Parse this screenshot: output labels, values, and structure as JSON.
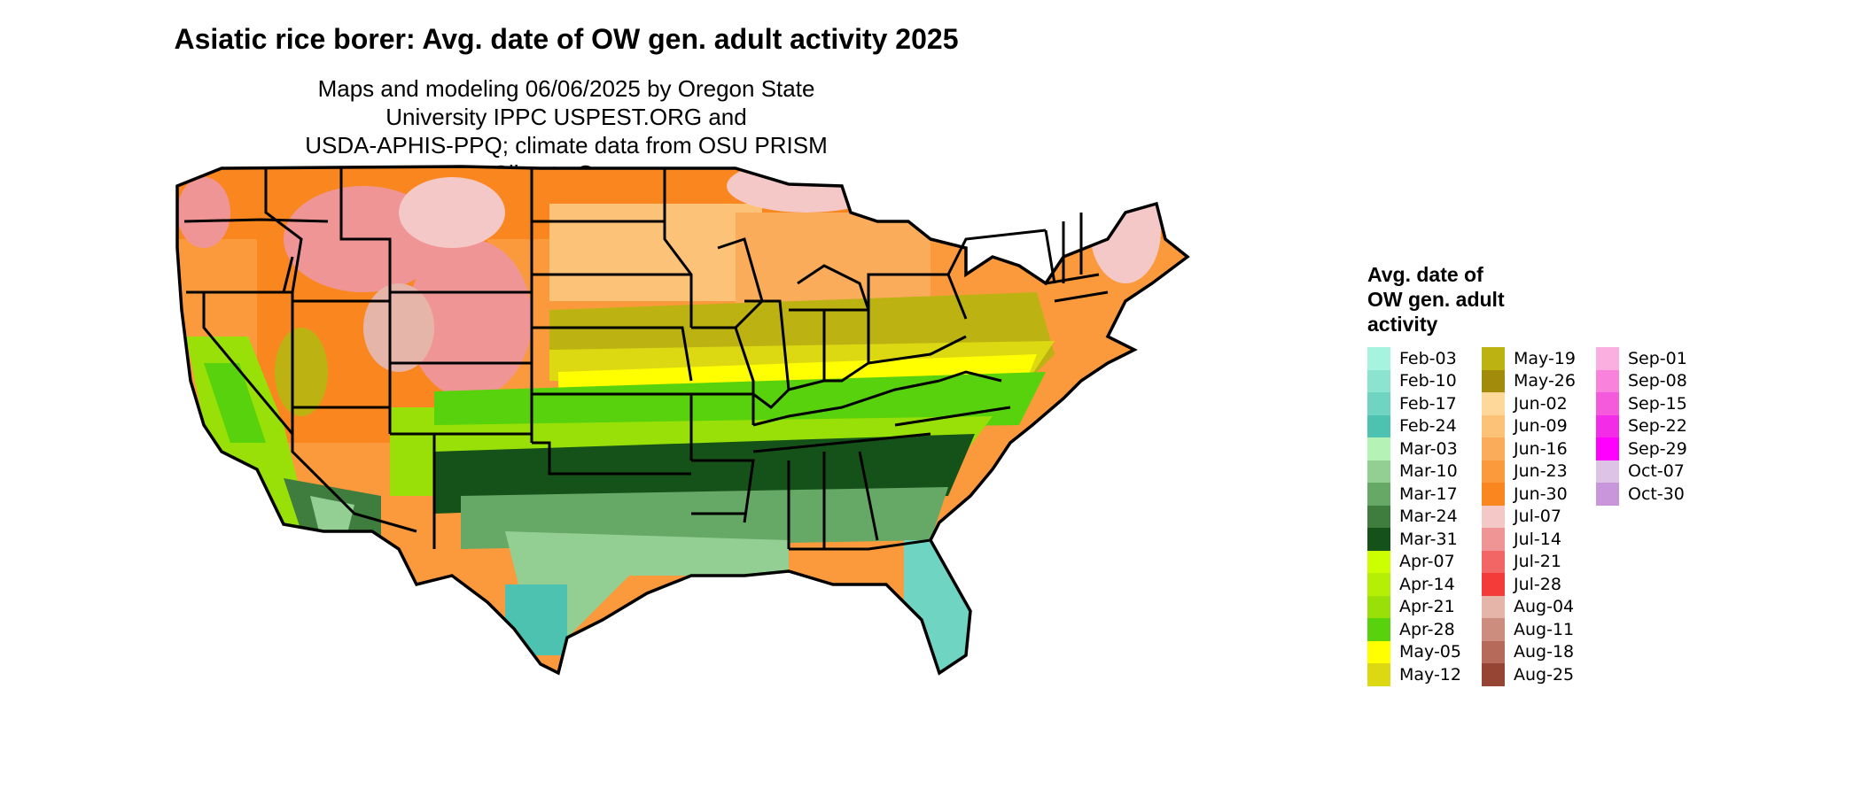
{
  "title": "Asiatic rice borer: Avg. date of OW gen. adult activity 2025",
  "subtitle_lines": [
    "Maps and modeling 06/06/2025 by Oregon State University IPPC USPEST.ORG and",
    "USDA-APHIS-PPQ; climate data from OSU PRISM Climate Group"
  ],
  "legend": {
    "title_lines": [
      "Avg. date of",
      "OW gen. adult",
      "activity"
    ],
    "columns": [
      [
        {
          "label": "Feb-03",
          "color": "#a6f4e0"
        },
        {
          "label": "Feb-10",
          "color": "#8ce3cf"
        },
        {
          "label": "Feb-17",
          "color": "#6fd4c2"
        },
        {
          "label": "Feb-24",
          "color": "#4ec2b1"
        },
        {
          "label": "Mar-03",
          "color": "#b5f2b5"
        },
        {
          "label": "Mar-10",
          "color": "#93cf92"
        },
        {
          "label": "Mar-17",
          "color": "#66a865"
        },
        {
          "label": "Mar-24",
          "color": "#3e7d3e"
        },
        {
          "label": "Mar-31",
          "color": "#15521a"
        },
        {
          "label": "Apr-07",
          "color": "#ccff00"
        },
        {
          "label": "Apr-14",
          "color": "#b4ef05"
        },
        {
          "label": "Apr-21",
          "color": "#98e007"
        },
        {
          "label": "Apr-28",
          "color": "#58d20c"
        },
        {
          "label": "May-05",
          "color": "#ffff00"
        },
        {
          "label": "May-12",
          "color": "#dcd812"
        }
      ],
      [
        {
          "label": "May-19",
          "color": "#bcb312"
        },
        {
          "label": "May-26",
          "color": "#a28b0a"
        },
        {
          "label": "Jun-02",
          "color": "#fdd89a"
        },
        {
          "label": "Jun-09",
          "color": "#fcc378"
        },
        {
          "label": "Jun-16",
          "color": "#fbac5b"
        },
        {
          "label": "Jun-23",
          "color": "#fa9a3c"
        },
        {
          "label": "Jun-30",
          "color": "#f9861e"
        },
        {
          "label": "Jul-07",
          "color": "#f5c8c8"
        },
        {
          "label": "Jul-14",
          "color": "#f09595"
        },
        {
          "label": "Jul-21",
          "color": "#f26666"
        },
        {
          "label": "Jul-28",
          "color": "#f53a3a"
        },
        {
          "label": "Aug-04",
          "color": "#e6b5a9"
        },
        {
          "label": "Aug-11",
          "color": "#cc8d7e"
        },
        {
          "label": "Aug-18",
          "color": "#b56a5a"
        },
        {
          "label": "Aug-25",
          "color": "#964535"
        }
      ],
      [
        {
          "label": "Sep-01",
          "color": "#fbaee0"
        },
        {
          "label": "Sep-08",
          "color": "#f882dc"
        },
        {
          "label": "Sep-15",
          "color": "#f559dc"
        },
        {
          "label": "Sep-22",
          "color": "#f32ce8"
        },
        {
          "label": "Sep-29",
          "color": "#ff00ff"
        },
        {
          "label": "Oct-07",
          "color": "#ddc3e6"
        },
        {
          "label": "Oct-30",
          "color": "#c996dc"
        }
      ]
    ]
  },
  "map_colors": {
    "border": "#000000",
    "northwest_orange": "#f9861e",
    "north_orange": "#fa9a3c",
    "plains_light": "#fcc378",
    "mountain_pink": "#f09595",
    "great_lakes_pink": "#f5c8c8",
    "midwest_olive": "#bcb312",
    "kansas_yellow": "#dcd812",
    "yellow_band": "#ffff00",
    "green_band": "#58d20c",
    "lime_band": "#98e007",
    "dark_green": "#15521a",
    "mid_green": "#66a865",
    "light_green": "#93cf92",
    "teal": "#6fd4c2",
    "teal_dark": "#4ec2b1",
    "california_green": "#98e007",
    "desert_green": "#3e7d3e"
  }
}
